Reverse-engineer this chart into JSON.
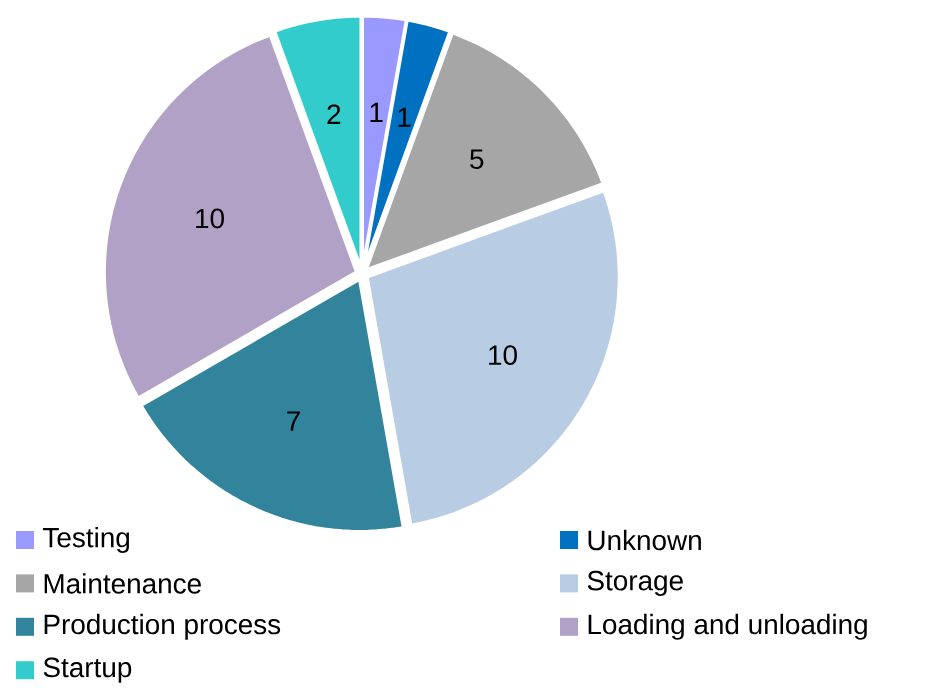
{
  "chart_data": {
    "type": "pie",
    "categories": [
      "Testing",
      "Unknown",
      "Maintenance",
      "Storage",
      "Production process",
      "Loading and unloading",
      "Startup"
    ],
    "values": [
      1,
      1,
      5,
      10,
      7,
      10,
      2
    ],
    "colors": [
      "#9999ff",
      "#0070c0",
      "#a6a6a6",
      "#b8cce4",
      "#31849b",
      "#b2a1c7",
      "#33cccc"
    ],
    "data_labels": true,
    "legend": "bottom"
  }
}
